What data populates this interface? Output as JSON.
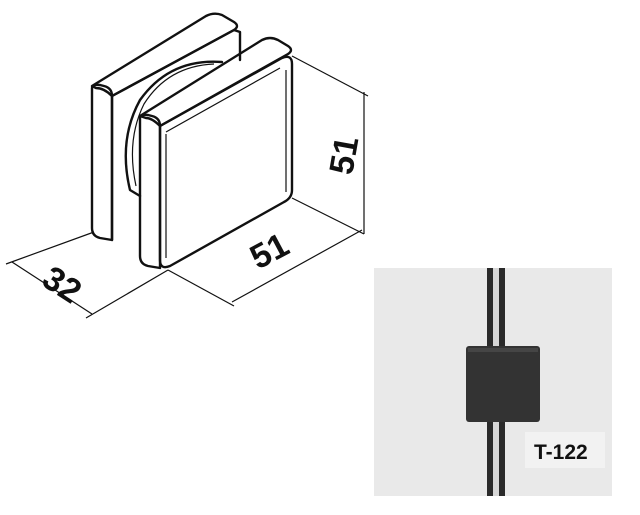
{
  "drawing": {
    "dimensions": {
      "depth": "32",
      "width": "51",
      "height": "51"
    },
    "product_code": "T-122"
  }
}
